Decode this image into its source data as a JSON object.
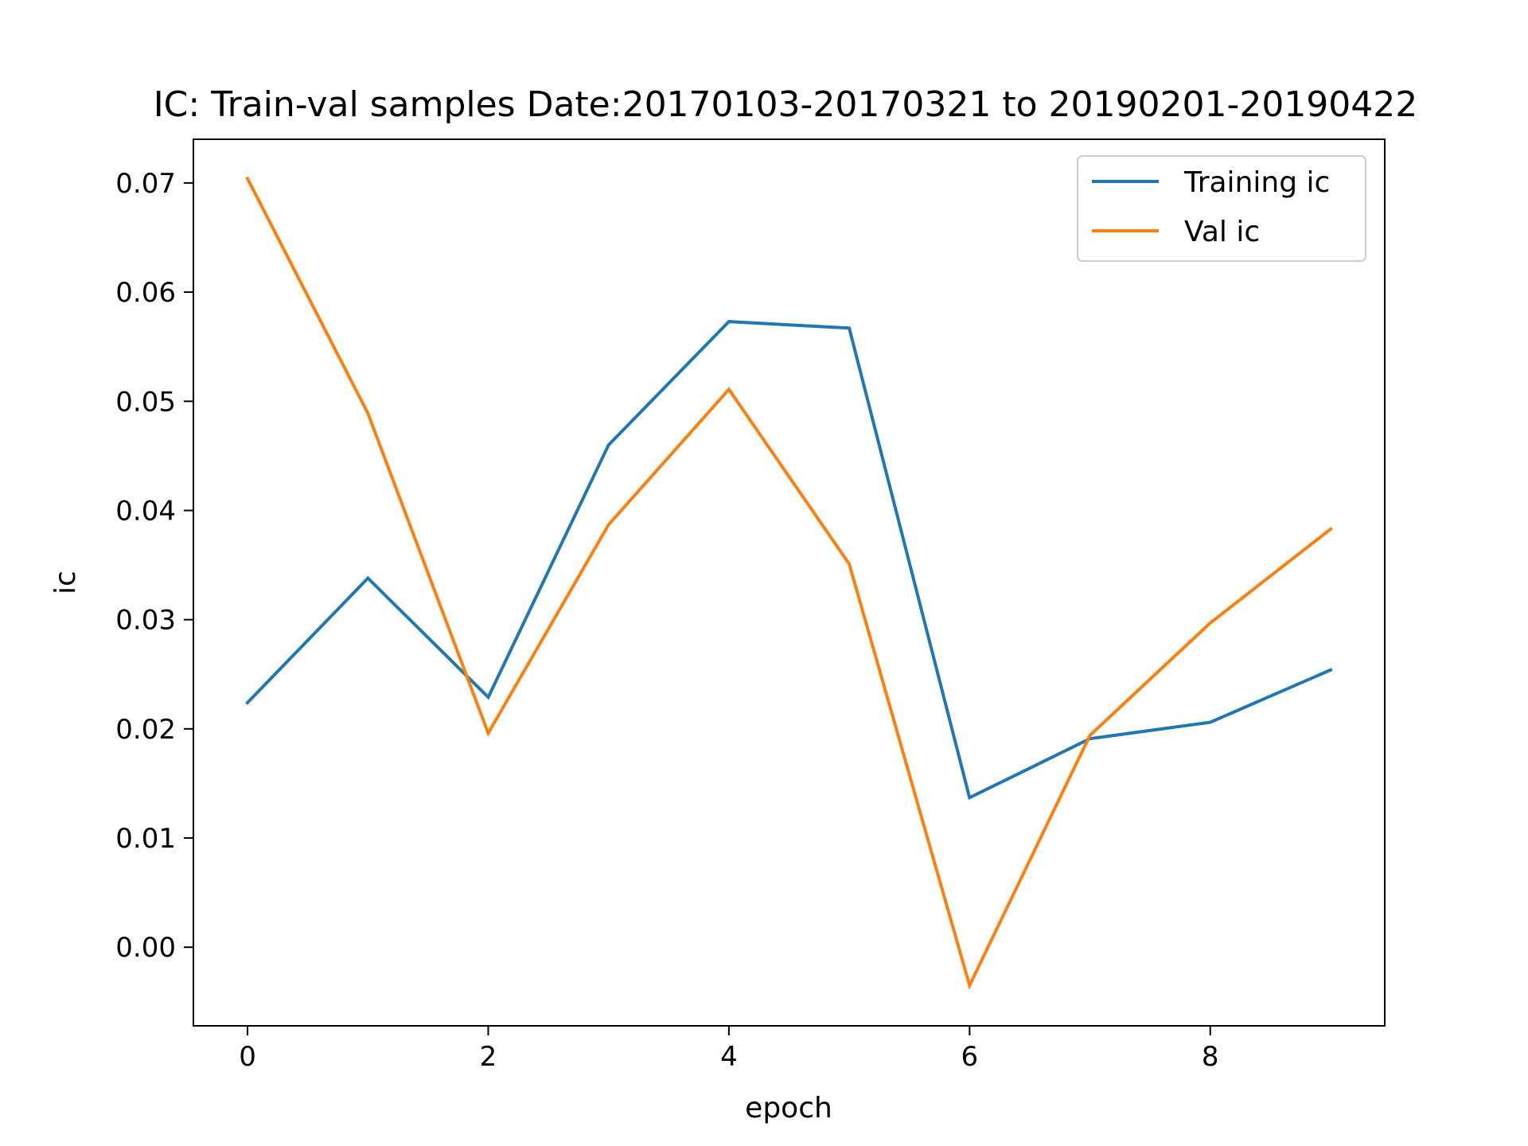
{
  "chart_data": {
    "type": "line",
    "title": "IC: Train-val samples Date:20170103-20170321 to 20190201-20190422",
    "xlabel": "epoch",
    "ylabel": "ic",
    "xlim": [
      -0.45,
      9.45
    ],
    "ylim": [
      -0.0072,
      0.074
    ],
    "xticks": [
      0,
      2,
      4,
      6,
      8
    ],
    "xtick_labels": [
      "0",
      "2",
      "4",
      "6",
      "8"
    ],
    "yticks": [
      0.0,
      0.01,
      0.02,
      0.03,
      0.04,
      0.05,
      0.06,
      0.07
    ],
    "ytick_labels": [
      "0.00",
      "0.01",
      "0.02",
      "0.03",
      "0.04",
      "0.05",
      "0.06",
      "0.07"
    ],
    "grid": false,
    "legend_position": "top-right",
    "x": [
      0,
      1,
      2,
      3,
      4,
      5,
      6,
      7,
      8,
      9
    ],
    "series": [
      {
        "name": "Training ic",
        "color": "#1f77b4",
        "values": [
          0.0224,
          0.0338,
          0.0229,
          0.046,
          0.0573,
          0.0567,
          0.0137,
          0.0191,
          0.0206,
          0.0254
        ]
      },
      {
        "name": "Val ic",
        "color": "#ff7f0e",
        "values": [
          0.0704,
          0.0489,
          0.0196,
          0.0387,
          0.0511,
          0.0351,
          -0.0035,
          0.0194,
          0.0297,
          0.0383
        ]
      }
    ]
  }
}
